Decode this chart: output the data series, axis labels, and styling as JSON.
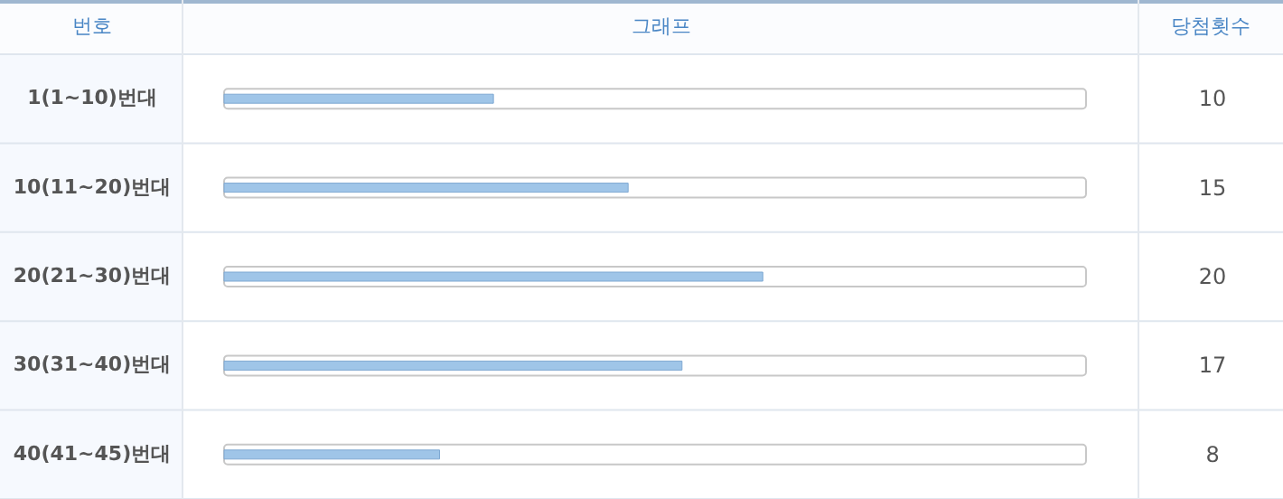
{
  "chart_data": {
    "type": "bar",
    "orientation": "horizontal",
    "ylabel": "번호",
    "annotations": [
      "그래프",
      "당첨횟수"
    ],
    "categories": [
      "1(1~10)번대",
      "10(11~20)번대",
      "20(21~30)번대",
      "30(31~40)번대",
      "40(41~45)번대"
    ],
    "values": [
      10,
      15,
      20,
      17,
      8
    ],
    "color": "#9fc5e8",
    "data_labels": true,
    "xlim": [
      0,
      32
    ]
  }
}
